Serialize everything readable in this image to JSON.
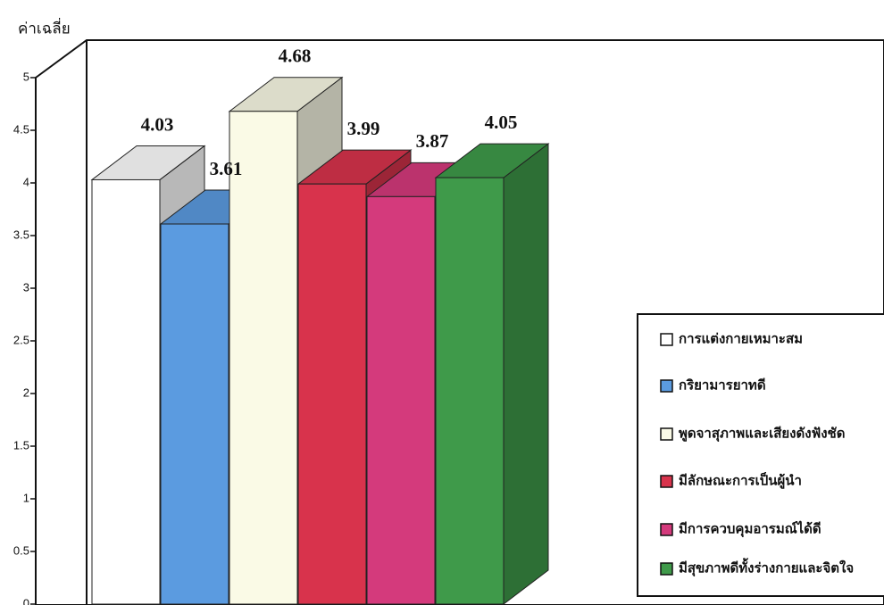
{
  "chart_data": {
    "type": "bar3d",
    "y_label": "ค่าเฉลี่ย",
    "ylim": [
      0,
      5
    ],
    "yticks": [
      0,
      0.5,
      1,
      1.5,
      2,
      2.5,
      3,
      3.5,
      4,
      4.5,
      5
    ],
    "legend": "right",
    "series": [
      {
        "name": "การแต่งกายเหมาะสม",
        "color": "#ffffff",
        "values": [
          4.03
        ]
      },
      {
        "name": "กริยามารยาทดี",
        "color": "#5b9be0",
        "values": [
          3.61
        ]
      },
      {
        "name": "พูดจาสุภาพและเสียงดังฟังชัด",
        "color": "#fafae6",
        "values": [
          4.68
        ]
      },
      {
        "name": "มีลักษณะการเป็นผู้นำ",
        "color": "#d8334c",
        "values": [
          3.99
        ]
      },
      {
        "name": "มีการควบคุมอารมณ์ได้ดี",
        "color": "#d43a7c",
        "values": [
          3.87
        ]
      },
      {
        "name": "มีสุขภาพดีทั้งร่างกายและจิตใจ",
        "color": "#3f9a4a",
        "values": [
          4.05
        ]
      }
    ]
  }
}
